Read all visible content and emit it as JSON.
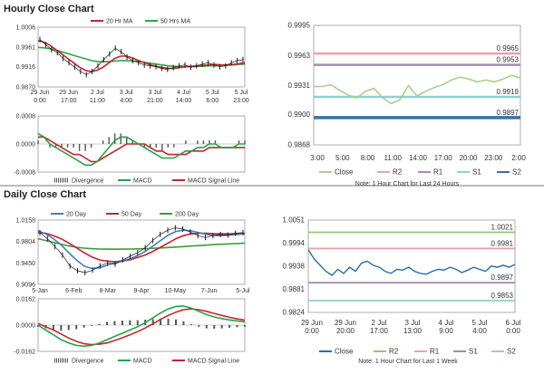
{
  "hourly_title": "Hourly Close Chart",
  "daily_title": "Daily Close Chart",
  "colors": {
    "close": "#1a1a1a",
    "ma_short": "#c8232c",
    "ma_long": "#2aa84a",
    "ma_200": "#3d9a3d",
    "ma_20": "#3c7fc0",
    "macd": "#21a34a",
    "signal": "#c8232c",
    "divergence": "#555555",
    "r2": "#e6a3a8",
    "r1": "#a08cb4",
    "s1": "#8fcfcf",
    "s2": "#3a6fa8",
    "close_green": "#a8d08d",
    "close_blue": "#2a6ea8",
    "r2_green": "#8fc873"
  },
  "chart_data": [
    {
      "id": "hourly_price",
      "type": "line",
      "yticks": [
        "1.0006",
        "0.9961",
        "0.9916",
        "0.9870"
      ],
      "ylim": [
        0.987,
        1.0006
      ],
      "xticks": [
        "29 Jun\n0:00",
        "29 Jun\n17:00",
        "2 Jul\n11:00",
        "3 Jul\n4:00",
        "3 Jul\n21:00",
        "4 Jul\n14:00",
        "5 Jul\n6:00",
        "5 Jul\n23:00"
      ],
      "legend": [
        "20 Hr MA",
        "50 Hrs MA"
      ],
      "series": [
        {
          "name": "Close",
          "values": [
            0.9978,
            0.9966,
            0.9955,
            0.9948,
            0.9935,
            0.9925,
            0.9915,
            0.9905,
            0.9898,
            0.9905,
            0.9918,
            0.9932,
            0.9945,
            0.9958,
            0.995,
            0.9938,
            0.993,
            0.9925,
            0.992,
            0.9918,
            0.9916,
            0.9912,
            0.991,
            0.9914,
            0.9918,
            0.992,
            0.9915,
            0.9918,
            0.9922,
            0.9925,
            0.992,
            0.9916,
            0.9918,
            0.9925,
            0.993,
            0.9932
          ]
        },
        {
          "name": "20 Hr MA",
          "values": [
            0.9975,
            0.9972,
            0.9965,
            0.9955,
            0.9945,
            0.9935,
            0.9925,
            0.9915,
            0.9908,
            0.9905,
            0.9908,
            0.9915,
            0.9925,
            0.9935,
            0.994,
            0.994,
            0.9936,
            0.993,
            0.9925,
            0.992,
            0.9917,
            0.9914,
            0.9912,
            0.9912,
            0.9914,
            0.9916,
            0.9917,
            0.9918,
            0.9919,
            0.992,
            0.9921,
            0.992,
            0.992,
            0.9921,
            0.9923,
            0.9925
          ]
        },
        {
          "name": "50 Hrs MA",
          "values": [
            0.996,
            0.9959,
            0.9957,
            0.9954,
            0.995,
            0.9946,
            0.9942,
            0.9938,
            0.9934,
            0.993,
            0.9928,
            0.9927,
            0.9928,
            0.9929,
            0.993,
            0.993,
            0.9929,
            0.9928,
            0.9926,
            0.9924,
            0.9922,
            0.992,
            0.9918,
            0.9917,
            0.9916,
            0.9916,
            0.9916,
            0.9917,
            0.9917,
            0.9918,
            0.9918,
            0.9919,
            0.9919,
            0.992,
            0.9921,
            0.9922
          ]
        }
      ]
    },
    {
      "id": "hourly_macd",
      "type": "line",
      "yticks": [
        "0.0008",
        "0.0000",
        "-0.0008"
      ],
      "ylim": [
        -0.0008,
        0.0008
      ],
      "legend": [
        "Divergence",
        "MACD",
        "MACD Signal Line"
      ],
      "series": [
        {
          "name": "MACD",
          "values": [
            0.0003,
            0.0002,
            0.0,
            -0.0001,
            -0.0002,
            -0.0003,
            -0.0004,
            -0.0005,
            -0.0006,
            -0.0006,
            -0.0005,
            -0.0003,
            -0.0001,
            0.0001,
            0.0002,
            0.0002,
            0.0001,
            0.0,
            -0.0001,
            -0.0002,
            -0.0003,
            -0.0004,
            -0.0004,
            -0.0004,
            -0.0003,
            -0.0002,
            -0.0002,
            -0.0001,
            -0.0001,
            0.0,
            0.0,
            -0.0001,
            -0.0001,
            -0.0001,
            0.0,
            0.0
          ]
        },
        {
          "name": "MACD Signal Line",
          "values": [
            0.0002,
            0.0002,
            0.0001,
            0.0,
            -0.0001,
            -0.0002,
            -0.0003,
            -0.0003,
            -0.0004,
            -0.0005,
            -0.0005,
            -0.0004,
            -0.0003,
            -0.0002,
            -0.0001,
            0.0,
            0.0,
            0.0,
            0.0,
            -0.0001,
            -0.0002,
            -0.0002,
            -0.0003,
            -0.0003,
            -0.0003,
            -0.0003,
            -0.0002,
            -0.0002,
            -0.0002,
            -0.0001,
            -0.0001,
            -0.0001,
            -0.0001,
            -0.0001,
            -0.0001,
            -0.0001
          ]
        }
      ]
    },
    {
      "id": "hourly_pivot",
      "type": "line",
      "yticks": [
        "0.9995",
        "0.9963",
        "0.9931",
        "0.9900",
        "0.9868"
      ],
      "ylim": [
        0.9868,
        0.9995
      ],
      "xticks": [
        "3:00",
        "5:00",
        "8:00",
        "11:00",
        "14:00",
        "17:00",
        "20:00",
        "23:00",
        "2:00"
      ],
      "levels": [
        {
          "name": "R2",
          "value": 0.9965,
          "label": "0.9965"
        },
        {
          "name": "R1",
          "value": 0.9953,
          "label": "0.9953"
        },
        {
          "name": "S1",
          "value": 0.9919,
          "label": "0.9919"
        },
        {
          "name": "S2",
          "value": 0.9897,
          "label": "0.9897"
        }
      ],
      "series": [
        {
          "name": "Close",
          "values": [
            0.993,
            0.993,
            0.9932,
            0.9926,
            0.9921,
            0.9918,
            0.9925,
            0.9928,
            0.9918,
            0.9912,
            0.9916,
            0.9931,
            0.992,
            0.9925,
            0.9929,
            0.9932,
            0.9937,
            0.994,
            0.9938,
            0.9935,
            0.9937,
            0.9935,
            0.9938,
            0.9942,
            0.9939
          ]
        }
      ],
      "legend": [
        "Close",
        "R2",
        "R1",
        "S1",
        "S2"
      ],
      "note": "Note: 1 Hour Chart for Last 24 Hours"
    },
    {
      "id": "daily_price",
      "type": "line",
      "yticks": [
        "1.0158",
        "0.9804",
        "0.9450",
        "0.9096"
      ],
      "ylim": [
        0.9096,
        1.0158
      ],
      "xticks": [
        "5-Jan",
        "6-Feb",
        "8-Mar",
        "9-Apr",
        "10-May",
        "7-Jun",
        "5-Jul"
      ],
      "legend": [
        "20 Day",
        "50 Day",
        "200 Day"
      ],
      "series": [
        {
          "name": "Close",
          "values": [
            0.995,
            0.985,
            0.972,
            0.958,
            0.94,
            0.932,
            0.929,
            0.933,
            0.94,
            0.945,
            0.943,
            0.95,
            0.956,
            0.962,
            0.97,
            0.982,
            0.992,
            0.999,
            1.003,
            1.001,
            0.996,
            0.99,
            0.987,
            0.99,
            0.992,
            0.991,
            0.994,
            0.995
          ]
        },
        {
          "name": "20 Day",
          "values": [
            0.998,
            0.993,
            0.985,
            0.975,
            0.962,
            0.95,
            0.94,
            0.936,
            0.937,
            0.941,
            0.945,
            0.948,
            0.952,
            0.957,
            0.964,
            0.973,
            0.982,
            0.991,
            0.997,
            0.999,
            0.998,
            0.995,
            0.992,
            0.99,
            0.99,
            0.991,
            0.992,
            0.993
          ]
        },
        {
          "name": "50 Day",
          "values": [
            0.995,
            0.994,
            0.99,
            0.985,
            0.978,
            0.97,
            0.962,
            0.955,
            0.95,
            0.948,
            0.947,
            0.948,
            0.95,
            0.954,
            0.958,
            0.964,
            0.971,
            0.978,
            0.985,
            0.99,
            0.993,
            0.994,
            0.994,
            0.993,
            0.993,
            0.993,
            0.9935,
            0.994
          ]
        },
        {
          "name": "200 Day",
          "values": [
            0.985,
            0.982,
            0.979,
            0.976,
            0.973,
            0.971,
            0.9695,
            0.9685,
            0.968,
            0.9678,
            0.9677,
            0.9678,
            0.968,
            0.9683,
            0.9687,
            0.9692,
            0.9698,
            0.9705,
            0.9712,
            0.972,
            0.9728,
            0.9736,
            0.9744,
            0.9752,
            0.9758,
            0.9764,
            0.977,
            0.9775
          ]
        }
      ]
    },
    {
      "id": "daily_macd",
      "type": "line",
      "yticks": [
        "0.0162",
        "0.0000",
        "-0.0162"
      ],
      "ylim": [
        -0.0162,
        0.0162
      ],
      "legend": [
        "Divergence",
        "MACD",
        "MACD Signal Line"
      ],
      "series": [
        {
          "name": "MACD",
          "values": [
            0.0,
            -0.003,
            -0.006,
            -0.009,
            -0.011,
            -0.0125,
            -0.013,
            -0.0125,
            -0.011,
            -0.009,
            -0.007,
            -0.005,
            -0.003,
            -0.001,
            0.0015,
            0.0045,
            0.0075,
            0.01,
            0.0115,
            0.0118,
            0.0105,
            0.0085,
            0.0065,
            0.005,
            0.004,
            0.0032,
            0.0025,
            0.002
          ]
        },
        {
          "name": "MACD Signal Line",
          "values": [
            0.001,
            -0.001,
            -0.003,
            -0.0055,
            -0.008,
            -0.01,
            -0.0115,
            -0.012,
            -0.0118,
            -0.011,
            -0.0095,
            -0.0078,
            -0.006,
            -0.004,
            -0.0018,
            0.0008,
            0.0035,
            0.006,
            0.008,
            0.0095,
            0.01,
            0.0095,
            0.0085,
            0.0072,
            0.006,
            0.0048,
            0.0038,
            0.003
          ]
        }
      ]
    },
    {
      "id": "weekly_pivot",
      "type": "line",
      "yticks": [
        "1.0051",
        "0.9994",
        "0.9938",
        "0.9881",
        "0.9824"
      ],
      "ylim": [
        0.9824,
        1.0051
      ],
      "xticks": [
        "29 Jun\n0:00",
        "29 Jun\n20:00",
        "2 Jul\n17:00",
        "3 Jul\n13:00",
        "4 Jul\n9:00",
        "5 Jul\n4:00",
        "6 Jul\n0:00"
      ],
      "levels": [
        {
          "name": "R2",
          "value": 1.0021,
          "label": "1.0021"
        },
        {
          "name": "R1",
          "value": 0.9981,
          "label": "0.9981"
        },
        {
          "name": "S1",
          "value": 0.9897,
          "label": "0.9897"
        },
        {
          "name": "S2",
          "value": 0.9853,
          "label": "0.9853"
        }
      ],
      "series": [
        {
          "name": "Close",
          "values": [
            0.9978,
            0.9955,
            0.994,
            0.9925,
            0.9915,
            0.993,
            0.992,
            0.9935,
            0.9925,
            0.9945,
            0.995,
            0.994,
            0.9935,
            0.9925,
            0.992,
            0.993,
            0.9928,
            0.9935,
            0.9925,
            0.992,
            0.9918,
            0.9925,
            0.993,
            0.9928,
            0.9935,
            0.993,
            0.9922,
            0.9928,
            0.9935,
            0.993,
            0.9925,
            0.9938,
            0.9935,
            0.994,
            0.9935,
            0.9942
          ]
        }
      ],
      "legend": [
        "Close",
        "R2",
        "R1",
        "S1",
        "S2"
      ],
      "note": "Note: 1 Hour Chart for Last 1 Week"
    }
  ]
}
